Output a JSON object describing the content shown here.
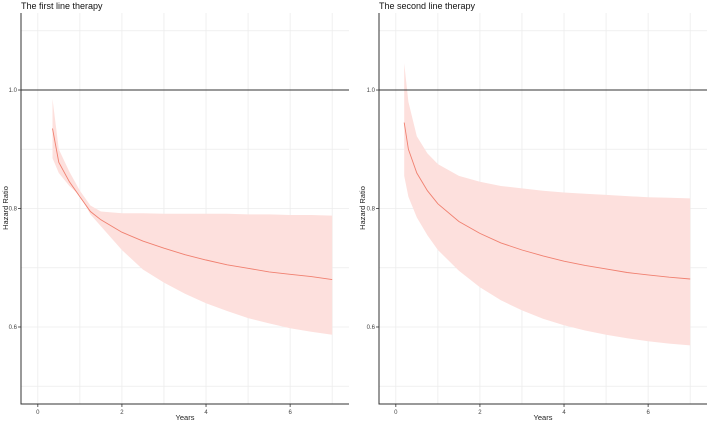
{
  "chart_data": [
    {
      "type": "line",
      "title": "The first line therapy",
      "xlabel": "Years",
      "ylabel": "Hazard Ratio",
      "xlim": [
        -0.4,
        7.4
      ],
      "ylim": [
        0.47,
        1.13
      ],
      "x_ticks": [
        0,
        2,
        4,
        6
      ],
      "x_tick_labels": [
        "0",
        "2",
        "4",
        "6"
      ],
      "y_ticks": [
        0.6,
        0.8,
        1.0
      ],
      "y_tick_labels": [
        "0.6",
        "0.8",
        "1.0"
      ],
      "reference_line": 1.0,
      "colors": {
        "line": "#f08070",
        "band": "#fde0dd"
      },
      "series": [
        {
          "name": "estimate",
          "x": [
            0.35,
            0.5,
            0.75,
            1.0,
            1.25,
            1.5,
            2.0,
            2.5,
            3.0,
            3.5,
            4.0,
            4.5,
            5.0,
            5.5,
            6.0,
            6.5,
            7.0
          ],
          "values": [
            0.935,
            0.878,
            0.845,
            0.82,
            0.795,
            0.781,
            0.76,
            0.745,
            0.733,
            0.722,
            0.713,
            0.705,
            0.699,
            0.693,
            0.689,
            0.685,
            0.68
          ]
        },
        {
          "name": "upper",
          "x": [
            0.35,
            0.5,
            0.75,
            1.0,
            1.25,
            1.5,
            2.0,
            2.5,
            3.0,
            3.5,
            4.0,
            4.5,
            5.0,
            5.5,
            6.0,
            6.5,
            7.0
          ],
          "values": [
            0.985,
            0.9,
            0.862,
            0.83,
            0.805,
            0.795,
            0.792,
            0.792,
            0.791,
            0.791,
            0.791,
            0.791,
            0.79,
            0.79,
            0.789,
            0.789,
            0.788
          ]
        },
        {
          "name": "lower",
          "x": [
            0.35,
            0.5,
            0.75,
            1.0,
            1.25,
            1.5,
            2.0,
            2.5,
            3.0,
            3.5,
            4.0,
            4.5,
            5.0,
            5.5,
            6.0,
            6.5,
            7.0
          ],
          "values": [
            0.885,
            0.86,
            0.838,
            0.822,
            0.79,
            0.77,
            0.73,
            0.697,
            0.675,
            0.656,
            0.64,
            0.627,
            0.615,
            0.606,
            0.598,
            0.592,
            0.587
          ]
        }
      ]
    },
    {
      "type": "line",
      "title": "The second line therapy",
      "xlabel": "Years",
      "ylabel": "Hazard Ratio",
      "xlim": [
        -0.4,
        7.4
      ],
      "ylim": [
        0.47,
        1.13
      ],
      "x_ticks": [
        0,
        2,
        4,
        6
      ],
      "x_tick_labels": [
        "0",
        "2",
        "4",
        "6"
      ],
      "y_ticks": [
        0.6,
        0.8,
        1.0
      ],
      "y_tick_labels": [
        "0.6",
        "0.8",
        "1.0"
      ],
      "reference_line": 1.0,
      "colors": {
        "line": "#f08070",
        "band": "#fde0dd"
      },
      "series": [
        {
          "name": "estimate",
          "x": [
            0.2,
            0.3,
            0.5,
            0.75,
            1.0,
            1.5,
            2.0,
            2.5,
            3.0,
            3.5,
            4.0,
            4.5,
            5.0,
            5.5,
            6.0,
            6.5,
            7.0
          ],
          "values": [
            0.945,
            0.9,
            0.86,
            0.83,
            0.808,
            0.778,
            0.758,
            0.742,
            0.73,
            0.72,
            0.711,
            0.704,
            0.698,
            0.692,
            0.688,
            0.684,
            0.681
          ]
        },
        {
          "name": "upper",
          "x": [
            0.2,
            0.3,
            0.5,
            0.75,
            1.0,
            1.5,
            2.0,
            2.5,
            3.0,
            3.5,
            4.0,
            4.5,
            5.0,
            5.5,
            6.0,
            6.5,
            7.0
          ],
          "values": [
            1.045,
            0.98,
            0.922,
            0.893,
            0.875,
            0.855,
            0.845,
            0.838,
            0.834,
            0.83,
            0.827,
            0.825,
            0.823,
            0.821,
            0.819,
            0.818,
            0.817
          ]
        },
        {
          "name": "lower",
          "x": [
            0.2,
            0.3,
            0.5,
            0.75,
            1.0,
            1.5,
            2.0,
            2.5,
            3.0,
            3.5,
            4.0,
            4.5,
            5.0,
            5.5,
            6.0,
            6.5,
            7.0
          ],
          "values": [
            0.855,
            0.82,
            0.785,
            0.755,
            0.73,
            0.695,
            0.667,
            0.645,
            0.628,
            0.614,
            0.603,
            0.594,
            0.587,
            0.581,
            0.576,
            0.572,
            0.569
          ]
        }
      ]
    }
  ]
}
